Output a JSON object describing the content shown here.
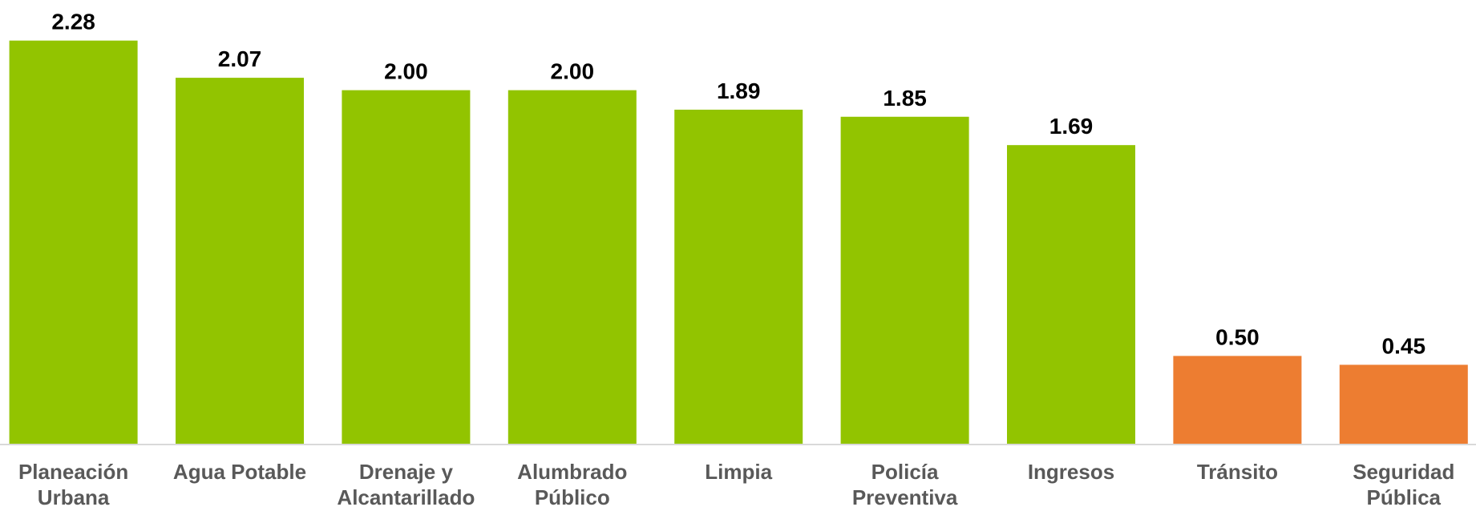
{
  "chart_data": {
    "type": "bar",
    "categories": [
      [
        "Planeación",
        "Urbana"
      ],
      [
        "Agua Potable"
      ],
      [
        "Drenaje y",
        "Alcantarillado"
      ],
      [
        "Alumbrado",
        "Público"
      ],
      [
        "Limpia"
      ],
      [
        "Policía",
        "Preventiva"
      ],
      [
        "Ingresos"
      ],
      [
        "Tránsito"
      ],
      [
        "Seguridad",
        "Pública"
      ]
    ],
    "values": [
      2.28,
      2.07,
      2.0,
      2.0,
      1.89,
      1.85,
      1.69,
      0.5,
      0.45
    ],
    "value_labels": [
      "2.28",
      "2.07",
      "2.00",
      "2.00",
      "1.89",
      "1.85",
      "1.69",
      "0.50",
      "0.45"
    ],
    "colors": [
      "#92c400",
      "#92c400",
      "#92c400",
      "#92c400",
      "#92c400",
      "#92c400",
      "#92c400",
      "#ed7d31",
      "#ed7d31"
    ],
    "ylim": [
      0,
      2.5
    ]
  }
}
